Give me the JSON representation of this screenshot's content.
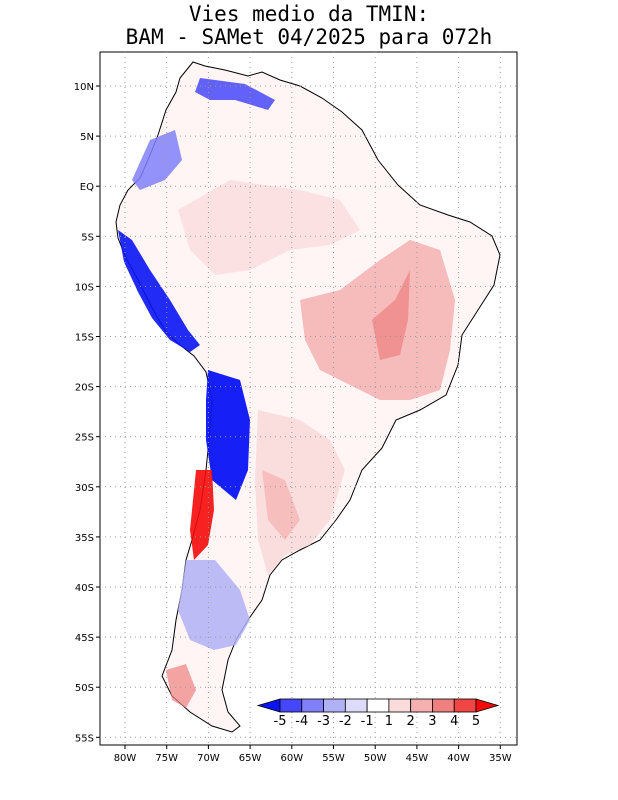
{
  "title": {
    "line1": "Vies medio da TMIN:",
    "line2": "BAM - SAMet 04/2025  para 072h"
  },
  "lat_labels": [
    "10N",
    "5N",
    "EQ",
    "5S",
    "10S",
    "15S",
    "20S",
    "25S",
    "30S",
    "35S",
    "40S",
    "45S",
    "50S",
    "55S"
  ],
  "lon_labels": [
    "80W",
    "75W",
    "70W",
    "65W",
    "60W",
    "55W",
    "50W",
    "45W",
    "40W",
    "35W"
  ],
  "colorbar": {
    "labels": [
      "-5",
      "-4",
      "-3",
      "-2",
      "-1",
      "1",
      "2",
      "3",
      "4",
      "5"
    ],
    "colors": [
      "#0a14f5",
      "#4646fa",
      "#8080fa",
      "#b0b0f5",
      "#dcdcfa",
      "#ffffff",
      "#fadcdc",
      "#f5b0b0",
      "#f08080",
      "#f04646",
      "#f50a0a"
    ]
  },
  "palette": {
    "land": "#ffffff",
    "border": "#000000",
    "grid": "#9a9a9a"
  }
}
